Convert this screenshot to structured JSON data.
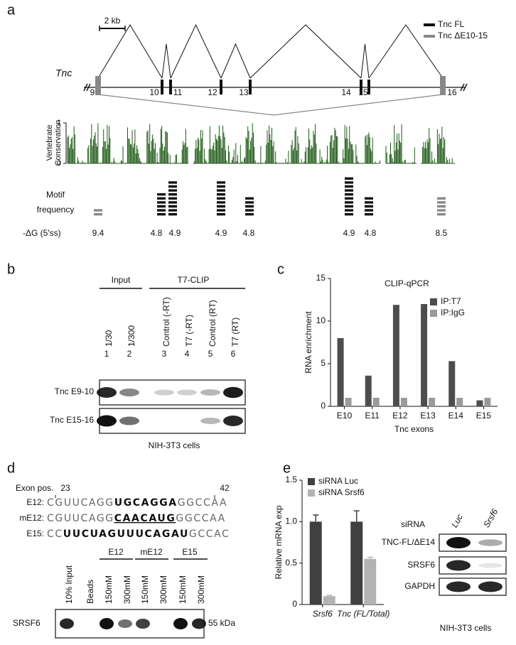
{
  "panel_a": {
    "label": "a",
    "scale_bar": "2 kb",
    "legend": [
      "Tnc FL",
      "Tnc ΔE10-15"
    ],
    "gene": "Tnc",
    "exons": [
      "9",
      "10",
      "11",
      "12",
      "13",
      "14",
      "15",
      "16"
    ],
    "conservation_label": [
      "Vertebrate",
      "Conservation"
    ],
    "conservation_ticks": [
      1,
      0
    ],
    "motif_label": [
      "Motif",
      "frequency"
    ],
    "motif_counts": [
      2,
      6,
      9,
      9,
      5,
      10,
      5,
      5
    ],
    "dg_label": "-ΔG (5'ss)",
    "dg_values": [
      9.4,
      4.8,
      4.9,
      4.9,
      4.8,
      4.9,
      4.8,
      8.5
    ]
  },
  "panel_b": {
    "label": "b",
    "groups": [
      "Input",
      "T7-CLIP"
    ],
    "lanes": [
      "1/30",
      "1/300",
      "Control (-RT)",
      "T7 (-RT)",
      "Control (RT)",
      "T7 (RT)"
    ],
    "lane_numbers": [
      1,
      2,
      3,
      4,
      5,
      6
    ],
    "rows": [
      "Tnc E9-10",
      "Tnc E15-16"
    ],
    "caption": "NIH-3T3 cells"
  },
  "panel_c": {
    "label": "c"
  },
  "panel_d": {
    "label": "d",
    "position_label": "Exon pos.",
    "positions": [
      23,
      42
    ],
    "sequences": [
      {
        "name": "E12:",
        "segments": [
          {
            "text": "CGUUCAGG"
          },
          {
            "text": "UGCAGGA",
            "bold": true
          },
          {
            "text": "GGCCAA"
          }
        ]
      },
      {
        "name": "mE12:",
        "segments": [
          {
            "text": "CGUUCAGG"
          },
          {
            "text": "CAACAUG",
            "bold": true,
            "underline": true
          },
          {
            "text": "GGCCAA"
          }
        ]
      },
      {
        "name": "E15:",
        "segments": [
          {
            "text": "CC"
          },
          {
            "text": "UUCUAGUUUCAGAU",
            "bold": true
          },
          {
            "text": "GCCAC"
          }
        ]
      }
    ],
    "lanes": [
      "10% Input",
      "Beads",
      "150mM",
      "300mM",
      "150mM",
      "300mM",
      "150mM",
      "300mM"
    ],
    "groups": [
      "E12",
      "mE12",
      "E15"
    ],
    "row": "SRSF6",
    "marker": "55 kDa"
  },
  "panel_e": {
    "label": "e",
    "blot_title": "siRNA",
    "blot_lanes": [
      "Luc",
      "Srsf6"
    ],
    "blot_rows": [
      "TNC-FL/ΔE14",
      "SRSF6",
      "GAPDH"
    ],
    "caption": "NIH-3T3 cells"
  },
  "chart_data": [
    {
      "type": "bar",
      "title": "CLIP-qPCR",
      "y_label": "RNA enrichment",
      "x_label": "Tnc exons",
      "categories": [
        "E10",
        "E11",
        "E12",
        "E13",
        "E14",
        "E15"
      ],
      "series": [
        {
          "name": "IP:T7",
          "color": "#4d4d4d",
          "values": [
            8.0,
            3.6,
            11.9,
            12.0,
            5.3,
            0.7
          ]
        },
        {
          "name": "IP:IgG",
          "color": "#9a9a9a",
          "values": [
            1,
            1,
            1,
            1,
            1,
            1
          ]
        }
      ],
      "ylim": [
        0,
        15
      ],
      "yticks": [
        0,
        5,
        10,
        15
      ],
      "legend": "upper right"
    },
    {
      "type": "bar",
      "y_label": "Relative mRNA exp",
      "categories": [
        "Srsf6",
        "Tnc (FL/Total)"
      ],
      "series": [
        {
          "name": "siRNA Luc",
          "color": "#404040",
          "values": [
            1.0,
            1.0
          ],
          "errors": [
            0.08,
            0.13
          ]
        },
        {
          "name": "siRNA Srsf6",
          "color": "#b3b3b3",
          "values": [
            0.1,
            0.55
          ],
          "errors": [
            0.01,
            0.02
          ]
        }
      ],
      "ylim": [
        0,
        1.5
      ],
      "yticks": [
        0,
        0.5,
        {
          "value": 1,
          "label": "1.0"
        },
        1.5
      ],
      "legend": "upper left"
    }
  ]
}
